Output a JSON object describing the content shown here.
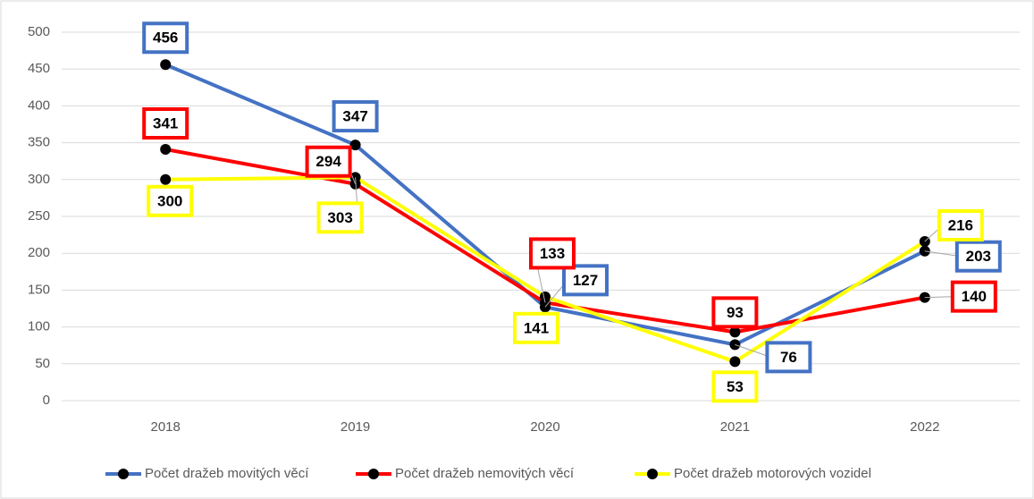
{
  "chart_data": {
    "type": "line",
    "categories": [
      "2018",
      "2019",
      "2020",
      "2021",
      "2022"
    ],
    "series": [
      {
        "name": "Počet dražeb movitých věcí",
        "color": "#4472c4",
        "values": [
          456,
          347,
          127,
          76,
          203
        ]
      },
      {
        "name": "Počet dražeb nemovitých věcí",
        "color": "#ff0000",
        "values": [
          341,
          294,
          133,
          93,
          140
        ]
      },
      {
        "name": "Počet dražeb motorových vozidel",
        "color": "#ffff00",
        "values": [
          300,
          303,
          141,
          53,
          216
        ]
      }
    ],
    "ylim": [
      0,
      500
    ],
    "yticks": [
      0,
      50,
      100,
      150,
      200,
      250,
      300,
      350,
      400,
      450,
      500
    ],
    "grid": true,
    "legend": "bottom",
    "marker_color": "#000000"
  }
}
